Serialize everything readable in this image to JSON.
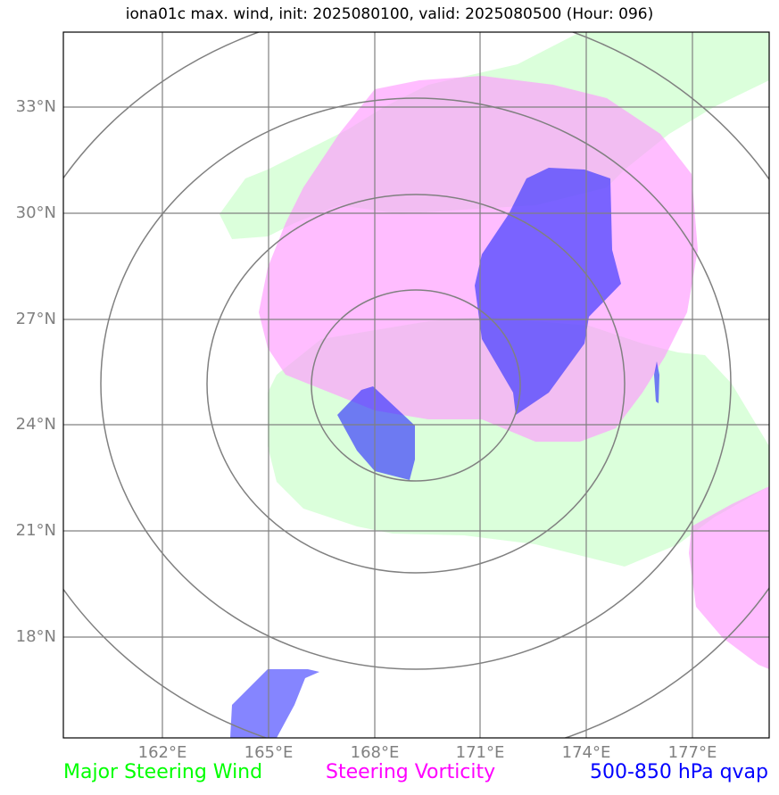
{
  "title": "iona01c max. wind, init: 2025080100, valid: 2025080500 (Hour: 096)",
  "lat_labels": [
    "33°N",
    "30°N",
    "27°N",
    "24°N",
    "21°N",
    "18°N"
  ],
  "lon_labels": [
    "162°E",
    "165°E",
    "168°E",
    "171°E",
    "174°E",
    "177°E"
  ],
  "legend": {
    "wind": "Major Steering Wind",
    "vorticity": "Steering Vorticity",
    "qvap": "500-850 hPa qvap"
  },
  "colors": {
    "wind_fill": "#ccffcc",
    "vorticity_fill": "#ff99ff",
    "qvap_fill": "#3333ff",
    "wind_text": "#00ff00",
    "vorticity_text": "#ff00ff",
    "qvap_text": "#0000ff",
    "grid": "#808080",
    "range_rings": "#808080"
  }
}
